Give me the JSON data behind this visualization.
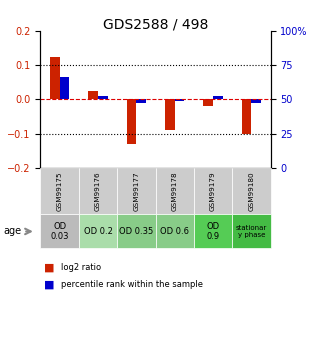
{
  "title": "GDS2588 / 498",
  "samples": [
    "GSM99175",
    "GSM99176",
    "GSM99177",
    "GSM99178",
    "GSM99179",
    "GSM99180"
  ],
  "log2_ratio": [
    0.125,
    0.025,
    -0.13,
    -0.09,
    -0.02,
    -0.1
  ],
  "percentile_rank_scaled": [
    0.065,
    0.01,
    -0.01,
    -0.005,
    0.01,
    -0.01
  ],
  "ylim_left": [
    -0.2,
    0.2
  ],
  "ylim_right": [
    0,
    100
  ],
  "yticks_left": [
    -0.2,
    -0.1,
    0.0,
    0.1,
    0.2
  ],
  "yticks_right": [
    0,
    25,
    50,
    75,
    100
  ],
  "hline_dotted": [
    0.1,
    -0.1
  ],
  "bar_width": 0.25,
  "red_color": "#cc2200",
  "blue_color": "#0000cc",
  "label_backgrounds": [
    "#bbbbbb",
    "#aaddaa",
    "#88cc88",
    "#88cc88",
    "#55cc55",
    "#44bb44"
  ],
  "label_texts": [
    "OD\n0.03",
    "OD 0.2",
    "OD 0.35",
    "OD 0.6",
    "OD\n0.9",
    "stationar\ny phase"
  ],
  "gsm_bg": "#cccccc",
  "legend_red_label": "log2 ratio",
  "legend_blue_label": "percentile rank within the sample",
  "age_label": "age",
  "dashed_zero_color": "#dd0000",
  "dotted_line_color": "#000000",
  "right_axis_color": "#0000cc"
}
